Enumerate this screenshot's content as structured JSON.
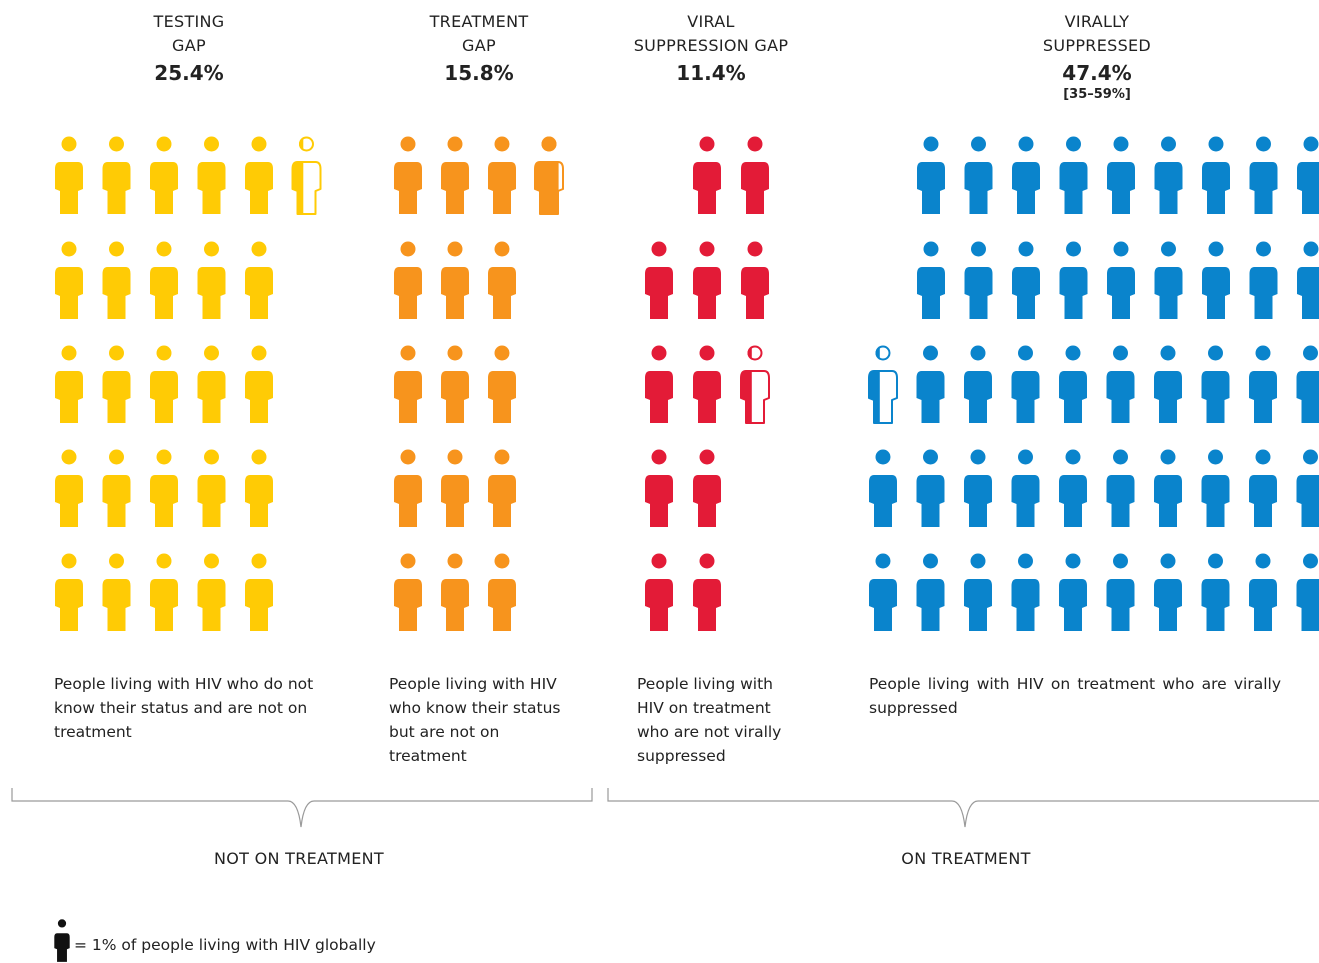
{
  "chart_data": {
    "type": "pictogram",
    "unit": "= 1% of people living with HIV globally",
    "categories": [
      {
        "name": "TESTING\nGAP",
        "value": 25.4,
        "display": "25.4%",
        "color": "#FFCB05",
        "description": "People living with HIV who do not know their status and are not on treatment"
      },
      {
        "name": "TREATMENT\nGAP",
        "value": 15.8,
        "display": "15.8%",
        "color": "#F7941D",
        "description": "People living with HIV who know their status but are not on treatment"
      },
      {
        "name": "VIRAL\nSUPPRESSION GAP",
        "value": 11.4,
        "display": "11.4%",
        "color": "#E31B37",
        "description": "People living with HIV on treatment who are not virally suppressed"
      },
      {
        "name": "VIRALLY\nSUPPRESSED",
        "value": 47.4,
        "display": "47.4%",
        "range": "[35–59%]",
        "color": "#0A84CC",
        "description": "People living with HIV on treatment who are virally suppressed"
      }
    ],
    "groups": [
      {
        "label": "NOT ON TREATMENT",
        "categories": [
          "TESTING GAP",
          "TREATMENT GAP"
        ]
      },
      {
        "label": "ON TREATMENT",
        "categories": [
          "VIRAL SUPPRESSION GAP",
          "VIRALLY SUPPRESSED"
        ]
      }
    ],
    "legend_icon_color": "#111111"
  }
}
